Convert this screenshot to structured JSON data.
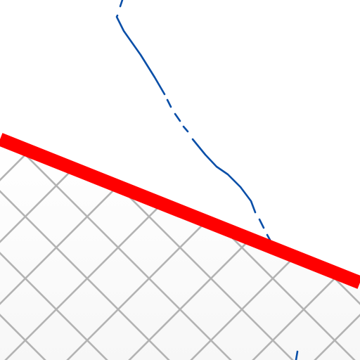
{
  "map": {
    "colors": {
      "background": "#ffffff",
      "hatched_area_fill": "#fafafa",
      "hatch_lines": "#b3b3b3",
      "boundary_line": "#ff0000",
      "waterway_line": "#0a4fa8"
    },
    "layers": [
      {
        "name": "hatched-area",
        "style": "diagonal crosshatch"
      },
      {
        "name": "waterway",
        "style": "thin blue line, dashed in places"
      },
      {
        "name": "boundary",
        "style": "thick red line"
      }
    ]
  }
}
